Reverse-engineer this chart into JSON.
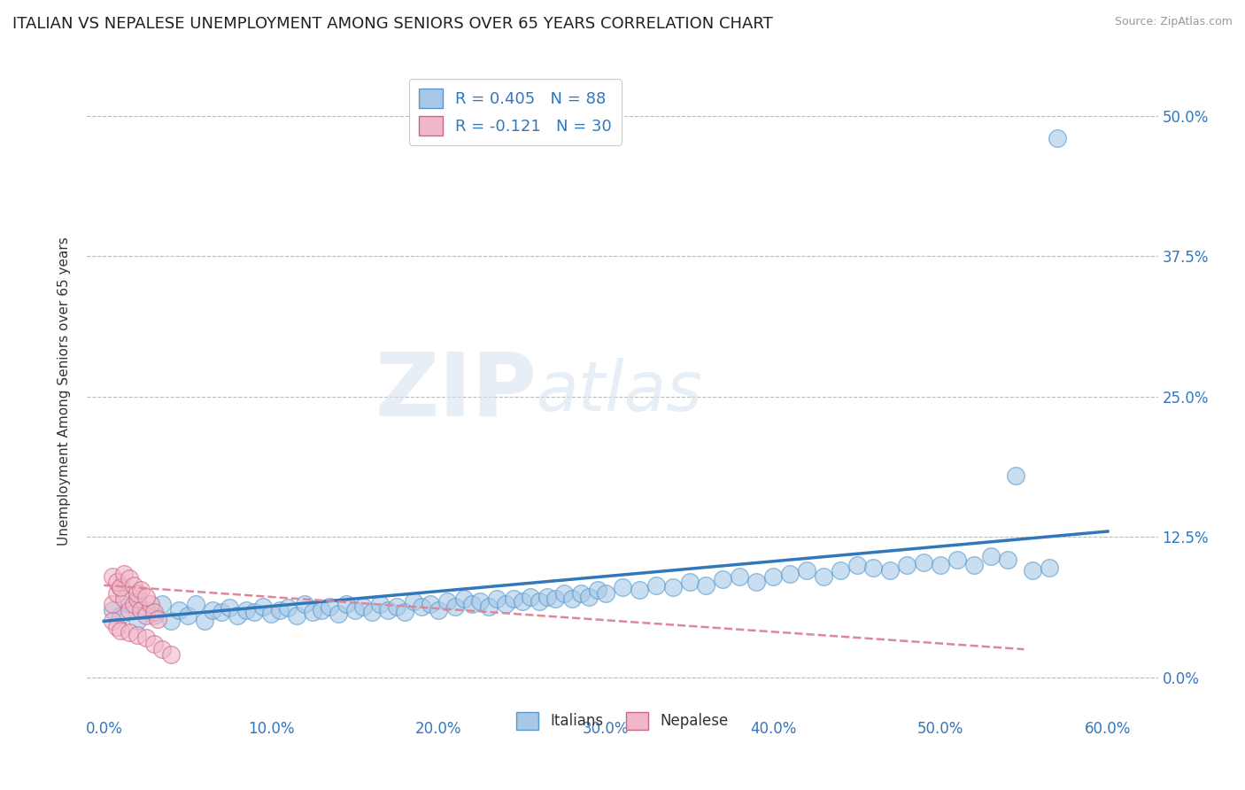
{
  "title": "ITALIAN VS NEPALESE UNEMPLOYMENT AMONG SENIORS OVER 65 YEARS CORRELATION CHART",
  "source": "Source: ZipAtlas.com",
  "ylabel": "Unemployment Among Seniors over 65 years",
  "xlim": [
    -0.01,
    0.63
  ],
  "ylim": [
    -0.03,
    0.54
  ],
  "xticks": [
    0.0,
    0.1,
    0.2,
    0.3,
    0.4,
    0.5,
    0.6
  ],
  "xticklabels": [
    "0.0%",
    "10.0%",
    "20.0%",
    "30.0%",
    "40.0%",
    "50.0%",
    "60.0%"
  ],
  "ytick_positions": [
    0.0,
    0.125,
    0.25,
    0.375,
    0.5
  ],
  "yticklabels_right": [
    "0.0%",
    "12.5%",
    "25.0%",
    "37.5%",
    "50.0%"
  ],
  "grid_color": "#bbbbbb",
  "background_color": "#ffffff",
  "watermark_zip": "ZIP",
  "watermark_atlas": "atlas",
  "italian_color": "#a8c8e8",
  "italian_edge_color": "#5599cc",
  "nepalese_color": "#f0b8c8",
  "nepalese_edge_color": "#cc6688",
  "trend_italian_color": "#3377bb",
  "trend_nepalese_color": "#dd8899",
  "title_fontsize": 13,
  "axis_label_fontsize": 11,
  "tick_fontsize": 12,
  "marker_size": 200,
  "italian_points_x": [
    0.005,
    0.01,
    0.015,
    0.02,
    0.025,
    0.03,
    0.035,
    0.04,
    0.045,
    0.05,
    0.055,
    0.06,
    0.065,
    0.07,
    0.075,
    0.08,
    0.085,
    0.09,
    0.095,
    0.1,
    0.105,
    0.11,
    0.115,
    0.12,
    0.125,
    0.13,
    0.135,
    0.14,
    0.145,
    0.15,
    0.155,
    0.16,
    0.165,
    0.17,
    0.175,
    0.18,
    0.185,
    0.19,
    0.195,
    0.2,
    0.205,
    0.21,
    0.215,
    0.22,
    0.225,
    0.23,
    0.235,
    0.24,
    0.245,
    0.25,
    0.255,
    0.26,
    0.265,
    0.27,
    0.275,
    0.28,
    0.285,
    0.29,
    0.295,
    0.3,
    0.31,
    0.32,
    0.33,
    0.34,
    0.35,
    0.36,
    0.37,
    0.38,
    0.39,
    0.4,
    0.41,
    0.42,
    0.43,
    0.44,
    0.45,
    0.46,
    0.47,
    0.48,
    0.49,
    0.5,
    0.51,
    0.52,
    0.53,
    0.54,
    0.545,
    0.555,
    0.565,
    0.57
  ],
  "italian_points_y": [
    0.06,
    0.055,
    0.065,
    0.05,
    0.06,
    0.055,
    0.065,
    0.05,
    0.06,
    0.055,
    0.065,
    0.05,
    0.06,
    0.058,
    0.062,
    0.055,
    0.06,
    0.058,
    0.063,
    0.057,
    0.06,
    0.062,
    0.055,
    0.065,
    0.058,
    0.06,
    0.063,
    0.057,
    0.065,
    0.06,
    0.063,
    0.058,
    0.065,
    0.06,
    0.063,
    0.058,
    0.068,
    0.063,
    0.065,
    0.06,
    0.068,
    0.063,
    0.07,
    0.065,
    0.068,
    0.063,
    0.07,
    0.065,
    0.07,
    0.068,
    0.072,
    0.068,
    0.072,
    0.07,
    0.075,
    0.07,
    0.075,
    0.072,
    0.078,
    0.075,
    0.08,
    0.078,
    0.082,
    0.08,
    0.085,
    0.082,
    0.087,
    0.09,
    0.085,
    0.09,
    0.092,
    0.095,
    0.09,
    0.095,
    0.1,
    0.098,
    0.095,
    0.1,
    0.102,
    0.1,
    0.105,
    0.1,
    0.108,
    0.105,
    0.18,
    0.095,
    0.098,
    0.48
  ],
  "nepalese_points_x": [
    0.005,
    0.008,
    0.01,
    0.012,
    0.015,
    0.018,
    0.02,
    0.022,
    0.025,
    0.028,
    0.03,
    0.032,
    0.005,
    0.008,
    0.01,
    0.012,
    0.015,
    0.018,
    0.02,
    0.022,
    0.025,
    0.005,
    0.008,
    0.01,
    0.015,
    0.02,
    0.025,
    0.03,
    0.035,
    0.04
  ],
  "nepalese_points_y": [
    0.065,
    0.075,
    0.08,
    0.07,
    0.06,
    0.065,
    0.07,
    0.06,
    0.055,
    0.065,
    0.058,
    0.052,
    0.09,
    0.085,
    0.08,
    0.092,
    0.088,
    0.082,
    0.075,
    0.078,
    0.072,
    0.05,
    0.045,
    0.042,
    0.04,
    0.038,
    0.035,
    0.03,
    0.025,
    0.02
  ],
  "italian_trend_x": [
    0.0,
    0.6
  ],
  "italian_trend_y": [
    0.05,
    0.13
  ],
  "nepalese_trend_x": [
    0.0,
    0.55
  ],
  "nepalese_trend_y": [
    0.082,
    0.025
  ]
}
